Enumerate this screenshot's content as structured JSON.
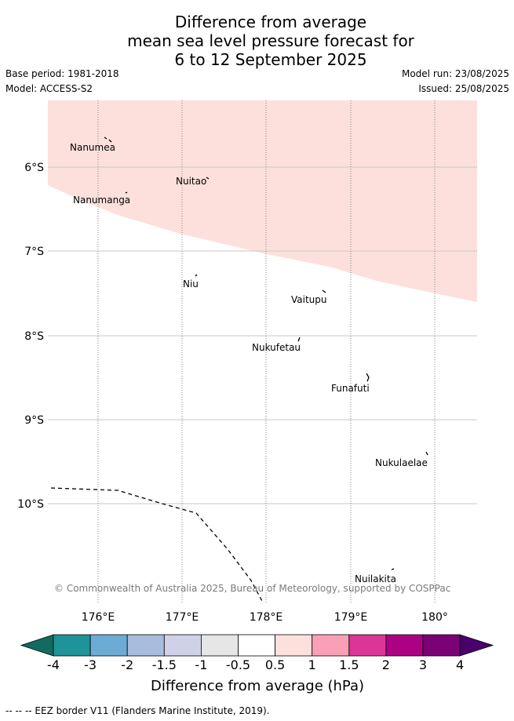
{
  "header": {
    "title_lines": [
      "Difference from average",
      "mean sea level pressure forecast for",
      "6 to 12 September 2025"
    ],
    "base_period": "Base period: 1981-2018",
    "model": "Model: ACCESS-S2",
    "model_run": "Model run: 23/08/2025",
    "issued": "Issued: 25/08/2025"
  },
  "map": {
    "lat_labels": [
      "6°S",
      "7°S",
      "8°S",
      "9°S",
      "10°S"
    ],
    "lon_labels": [
      "176°E",
      "177°E",
      "178°E",
      "179°E",
      "180°"
    ],
    "places": [
      {
        "name": "Nanumea"
      },
      {
        "name": "Nuitao"
      },
      {
        "name": "Nanumanga"
      },
      {
        "name": "Niu"
      },
      {
        "name": "Vaitupu"
      },
      {
        "name": "Nukufetau"
      },
      {
        "name": "Funafuti"
      },
      {
        "name": "Nukulaelae"
      },
      {
        "name": "Nuilakita"
      }
    ],
    "copyright": "© Commonwealth of Australia 2025, Bureau of Meteorology, supported by COSPPac",
    "shaded_color": "#fde0dc"
  },
  "colorbar": {
    "ticks": [
      "-4",
      "-3",
      "-2",
      "-1.5",
      "-1",
      "-0.5",
      "0.5",
      "1",
      "1.5",
      "2",
      "3",
      "4"
    ],
    "colors": [
      "#116b60",
      "#1e9399",
      "#6cacd4",
      "#a8bcdd",
      "#cfd1e7",
      "#e6e6e6",
      "#ffffff",
      "#fde0dc",
      "#f9a0b6",
      "#dc359a",
      "#ad0183",
      "#7b0177",
      "#49006a"
    ],
    "label": "Difference from average (hPa)"
  },
  "footer": {
    "eez_text": "-- -- -- EEZ border V11 (Flanders Marine Institute, 2019)."
  }
}
